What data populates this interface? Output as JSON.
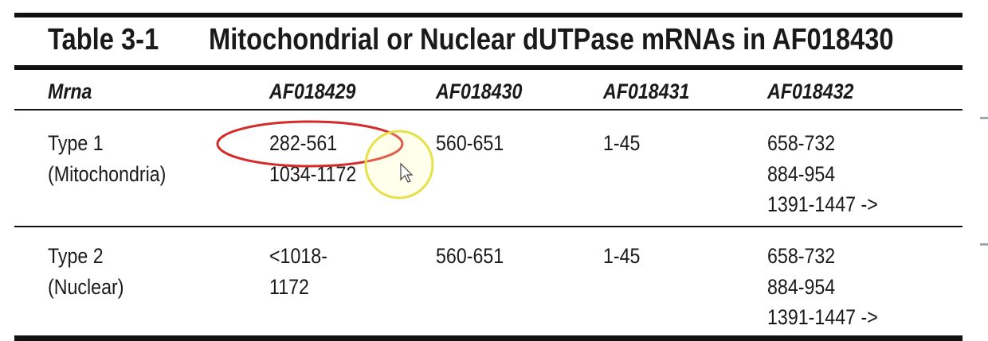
{
  "title": {
    "number": "Table 3-1",
    "text": "Mitochondrial or Nuclear dUTPase mRNAs in AF018430"
  },
  "table": {
    "header": [
      "Mrna",
      "AF018429",
      "AF018430",
      "AF018431",
      "AF018432"
    ],
    "rows": [
      [
        [
          "Type 1",
          "(Mitochondria)"
        ],
        [
          "282-561",
          "1034-1172"
        ],
        [
          "560-651"
        ],
        [
          "1-45"
        ],
        [
          "658-732",
          "884-954",
          "1391-1447 ->"
        ]
      ],
      [
        [
          "Type 2",
          "(Nuclear)"
        ],
        [
          "<1018-",
          "1172"
        ],
        [
          "560-651"
        ],
        [
          "1-45"
        ],
        [
          "658-732",
          "884-954",
          "1391-1447 ->"
        ]
      ]
    ]
  }
}
